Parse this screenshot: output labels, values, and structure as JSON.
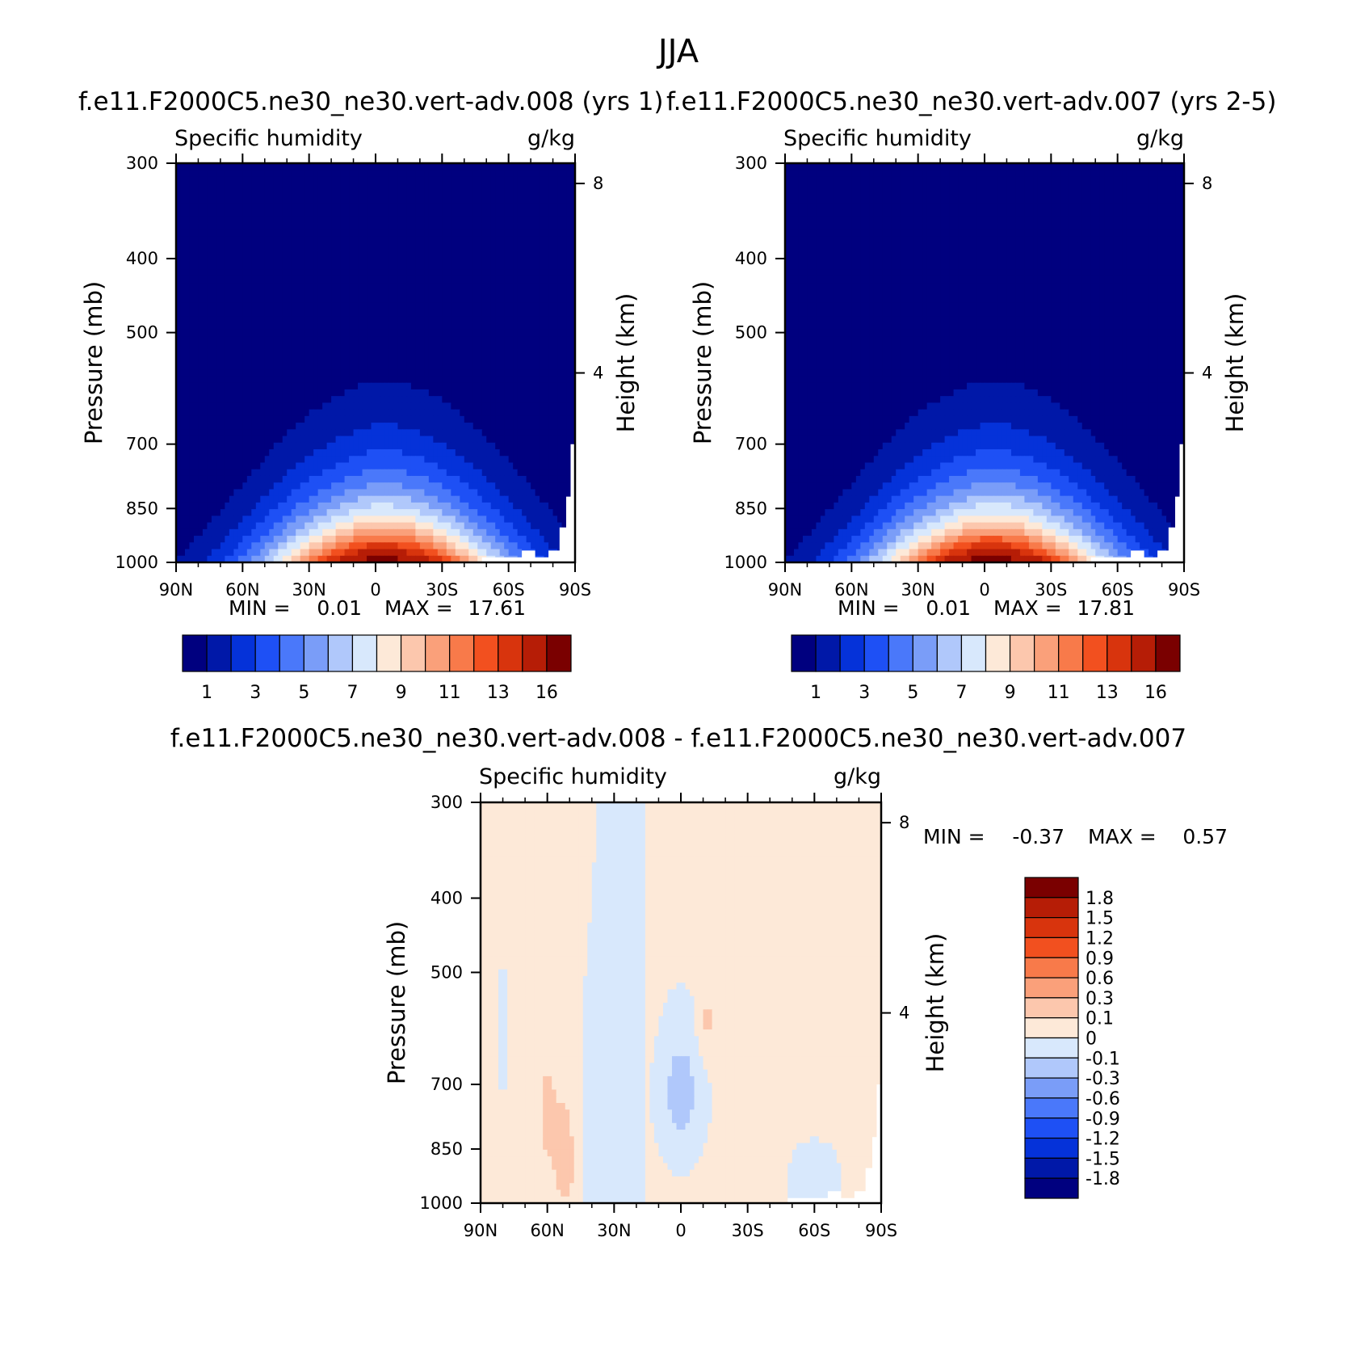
{
  "figure": {
    "title": "JJA"
  },
  "colors": {
    "abs_palette": [
      "#00007f",
      "#0018a8",
      "#0532d9",
      "#1e50f5",
      "#4a78fa",
      "#7a9df8",
      "#b0c8fb",
      "#d8e8fc",
      "#fde9d8",
      "#fcc7ad",
      "#faa07a",
      "#f87a4a",
      "#f2501f",
      "#d8340d",
      "#b61d06",
      "#7a0000"
    ],
    "diff_palette": [
      "#00007f",
      "#0018a8",
      "#0532d9",
      "#1e50f5",
      "#4a78fa",
      "#7a9df8",
      "#b0c8fb",
      "#d8e8fc",
      "#fde9d8",
      "#fcc7ad",
      "#faa07a",
      "#f87a4a",
      "#f2501f",
      "#d8340d",
      "#b61d06",
      "#7a0000"
    ]
  },
  "chart_data": [
    {
      "type": "heatmap",
      "subtitle": "f.e11.F2000C5.ne30_ne30.vert-adv.008 (yrs 1)",
      "variable_label": "Specific humidity",
      "units_label": "g/kg",
      "ylabel": "Pressure (mb)",
      "y2label": "Height (km)",
      "x_ticks": [
        "90N",
        "60N",
        "30N",
        "0",
        "30S",
        "60S",
        "90S"
      ],
      "x_range": [
        90,
        -90
      ],
      "y_ticks": [
        300,
        400,
        500,
        700,
        850,
        1000
      ],
      "y_range": [
        1000,
        300
      ],
      "y_scale": "log",
      "height_ticks": [
        "8",
        "4"
      ],
      "height_km": [
        8,
        4
      ],
      "min_label": "MIN =",
      "min_value": "0.01",
      "max_label": "MAX =",
      "max_value": "17.61",
      "colorbar_labels": [
        "1",
        "3",
        "5",
        "7",
        "9",
        "11",
        "13",
        "16"
      ],
      "fields_max": 17.61
    },
    {
      "type": "heatmap",
      "subtitle": "f.e11.F2000C5.ne30_ne30.vert-adv.007 (yrs 2-5)",
      "variable_label": "Specific humidity",
      "units_label": "g/kg",
      "ylabel": "Pressure (mb)",
      "y2label": "Height (km)",
      "x_ticks": [
        "90N",
        "60N",
        "30N",
        "0",
        "30S",
        "60S",
        "90S"
      ],
      "x_range": [
        90,
        -90
      ],
      "y_ticks": [
        300,
        400,
        500,
        700,
        850,
        1000
      ],
      "y_range": [
        1000,
        300
      ],
      "y_scale": "log",
      "height_ticks": [
        "8",
        "4"
      ],
      "height_km": [
        8,
        4
      ],
      "min_label": "MIN =",
      "min_value": "0.01",
      "max_label": "MAX =",
      "max_value": "17.81",
      "colorbar_labels": [
        "1",
        "3",
        "5",
        "7",
        "9",
        "11",
        "13",
        "16"
      ],
      "fields_max": 17.81
    },
    {
      "type": "heatmap",
      "subtitle": "f.e11.F2000C5.ne30_ne30.vert-adv.008 - f.e11.F2000C5.ne30_ne30.vert-adv.007",
      "variable_label": "Specific humidity",
      "units_label": "g/kg",
      "ylabel": "Pressure (mb)",
      "y2label": "Height (km)",
      "x_ticks": [
        "90N",
        "60N",
        "30N",
        "0",
        "30S",
        "60S",
        "90S"
      ],
      "x_range": [
        90,
        -90
      ],
      "y_ticks": [
        300,
        400,
        500,
        700,
        850,
        1000
      ],
      "y_range": [
        1000,
        300
      ],
      "y_scale": "log",
      "height_ticks": [
        "8",
        "4"
      ],
      "height_km": [
        8,
        4
      ],
      "min_label": "MIN =",
      "min_value": "-0.37",
      "max_label": "MAX =",
      "max_value": "0.57",
      "colorbar_labels": [
        "1.8",
        "1.5",
        "1.2",
        "0.9",
        "0.6",
        "0.3",
        "0.1",
        "0",
        "-0.1",
        "-0.3",
        "-0.6",
        "-0.9",
        "-1.2",
        "-1.5",
        "-1.8"
      ]
    }
  ]
}
